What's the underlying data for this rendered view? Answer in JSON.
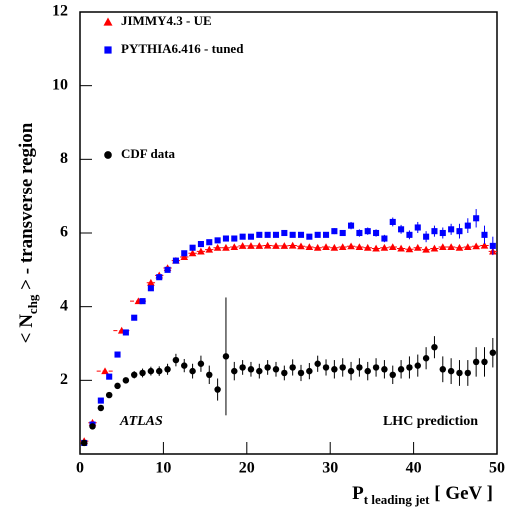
{
  "chart_data": {
    "type": "scatter",
    "y_label": {
      "prefix": "< N",
      "sub": "chg",
      "suffix": " > - transverse region"
    },
    "x_label": {
      "main": "P",
      "sub": "t leading jet",
      "suffix": " [ GeV ]"
    },
    "annotations": [
      "ATLAS",
      "LHC prediction"
    ],
    "xlim": [
      0,
      50
    ],
    "xticks": [
      0,
      10,
      20,
      30,
      40,
      50
    ],
    "ylim": [
      0,
      12
    ],
    "yticks": [
      2,
      4,
      6,
      8,
      10,
      12
    ],
    "series": [
      {
        "name": "JIMMY4.3 - UE",
        "color": "#ff0000",
        "marker": "triangle",
        "x": [
          0.5,
          1.5,
          3,
          5,
          7,
          8.5,
          9.5,
          10.5,
          11.5,
          12.5,
          13.5,
          14.5,
          15.5,
          16.5,
          17.5,
          18.5,
          19.5,
          20.5,
          21.5,
          22.5,
          23.5,
          24.5,
          25.5,
          26.5,
          27.5,
          28.5,
          29.5,
          30.5,
          31.5,
          32.5,
          33.5,
          34.5,
          35.5,
          36.5,
          37.5,
          38.5,
          39.5,
          40.5,
          41.5,
          42.5,
          43.5,
          44.5,
          45.5,
          46.5,
          47.5,
          48.5,
          49.5
        ],
        "xerr": [
          0.5,
          0.5,
          1,
          1,
          1,
          0.5,
          0.5,
          0.5,
          0.5,
          0.5,
          0.5,
          0.5,
          0.5,
          0.5,
          0.5,
          0.5,
          0.5,
          0.5,
          0.5,
          0.5,
          0.5,
          0.5,
          0.5,
          0.5,
          0.5,
          0.5,
          0.5,
          0.5,
          0.5,
          0.5,
          0.5,
          0.5,
          0.5,
          0.5,
          0.5,
          0.5,
          0.5,
          0.5,
          0.5,
          0.5,
          0.5,
          0.5,
          0.5,
          0.5,
          0.5,
          0.5,
          0.5
        ],
        "values": [
          0.35,
          0.85,
          2.25,
          3.35,
          4.15,
          4.65,
          4.85,
          5.05,
          5.25,
          5.35,
          5.45,
          5.5,
          5.55,
          5.6,
          5.6,
          5.62,
          5.65,
          5.65,
          5.65,
          5.66,
          5.65,
          5.65,
          5.66,
          5.64,
          5.62,
          5.6,
          5.62,
          5.6,
          5.62,
          5.64,
          5.62,
          5.6,
          5.58,
          5.6,
          5.62,
          5.58,
          5.56,
          5.6,
          5.55,
          5.58,
          5.62,
          5.62,
          5.6,
          5.62,
          5.64,
          5.66,
          5.5
        ]
      },
      {
        "name": "PYTHIA6.416 - tuned",
        "color": "#0000ff",
        "marker": "square",
        "x": [
          0.5,
          1.5,
          2.5,
          3.5,
          4.5,
          5.5,
          6.5,
          7.5,
          8.5,
          9.5,
          10.5,
          11.5,
          12.5,
          13.5,
          14.5,
          15.5,
          16.5,
          17.5,
          18.5,
          19.5,
          20.5,
          21.5,
          22.5,
          23.5,
          24.5,
          25.5,
          26.5,
          27.5,
          28.5,
          29.5,
          30.5,
          31.5,
          32.5,
          33.5,
          34.5,
          35.5,
          36.5,
          37.5,
          38.5,
          39.5,
          40.5,
          41.5,
          42.5,
          43.5,
          44.5,
          45.5,
          46.5,
          47.5,
          48.5,
          49.5
        ],
        "values": [
          0.3,
          0.8,
          1.45,
          2.1,
          2.7,
          3.3,
          3.7,
          4.15,
          4.5,
          4.8,
          5.0,
          5.25,
          5.45,
          5.6,
          5.7,
          5.75,
          5.8,
          5.85,
          5.85,
          5.9,
          5.9,
          5.95,
          5.95,
          5.95,
          6.0,
          5.95,
          5.95,
          5.9,
          5.95,
          5.95,
          6.05,
          6.0,
          6.2,
          6.0,
          6.05,
          6.0,
          5.85,
          6.3,
          6.1,
          5.95,
          6.15,
          5.9,
          6.05,
          6.0,
          6.1,
          6.05,
          6.2,
          6.4,
          5.95,
          5.65
        ],
        "errors": [
          0.02,
          0.02,
          0.02,
          0.02,
          0.02,
          0.02,
          0.02,
          0.02,
          0.02,
          0.02,
          0.02,
          0.02,
          0.02,
          0.02,
          0.02,
          0.02,
          0.02,
          0.02,
          0.02,
          0.02,
          0.03,
          0.03,
          0.03,
          0.03,
          0.03,
          0.03,
          0.03,
          0.03,
          0.03,
          0.03,
          0.08,
          0.08,
          0.1,
          0.1,
          0.1,
          0.1,
          0.1,
          0.12,
          0.12,
          0.12,
          0.15,
          0.15,
          0.15,
          0.15,
          0.15,
          0.2,
          0.2,
          0.25,
          0.25,
          0.25
        ]
      },
      {
        "name": "CDF data",
        "color": "#000000",
        "marker": "circle",
        "x": [
          0.5,
          1.5,
          2.5,
          3.5,
          4.5,
          5.5,
          6.5,
          7.5,
          8.5,
          9.5,
          10.5,
          11.5,
          12.5,
          13.5,
          14.5,
          15.5,
          16.5,
          17.5,
          18.5,
          19.5,
          20.5,
          21.5,
          22.5,
          23.5,
          24.5,
          25.5,
          26.5,
          27.5,
          28.5,
          29.5,
          30.5,
          31.5,
          32.5,
          33.5,
          34.5,
          35.5,
          36.5,
          37.5,
          38.5,
          39.5,
          40.5,
          41.5,
          42.5,
          43.5,
          44.5,
          45.5,
          46.5,
          47.5,
          48.5,
          49.5
        ],
        "values": [
          0.3,
          0.75,
          1.25,
          1.6,
          1.85,
          2.0,
          2.15,
          2.2,
          2.25,
          2.25,
          2.3,
          2.55,
          2.4,
          2.25,
          2.45,
          2.15,
          1.75,
          2.65,
          2.25,
          2.35,
          2.3,
          2.25,
          2.35,
          2.3,
          2.2,
          2.35,
          2.2,
          2.25,
          2.45,
          2.35,
          2.3,
          2.35,
          2.25,
          2.35,
          2.25,
          2.35,
          2.3,
          2.15,
          2.3,
          2.35,
          2.4,
          2.6,
          2.9,
          2.3,
          2.25,
          2.2,
          2.2,
          2.5,
          2.5,
          2.75
        ],
        "errors": [
          0.03,
          0.04,
          0.05,
          0.06,
          0.07,
          0.08,
          0.1,
          0.12,
          0.12,
          0.13,
          0.15,
          0.17,
          0.18,
          0.2,
          0.22,
          0.25,
          0.3,
          1.6,
          0.25,
          0.2,
          0.2,
          0.2,
          0.2,
          0.2,
          0.2,
          0.22,
          0.22,
          0.22,
          0.22,
          0.22,
          0.25,
          0.25,
          0.25,
          0.25,
          0.25,
          0.25,
          0.25,
          0.25,
          0.25,
          0.3,
          0.3,
          0.3,
          0.3,
          0.35,
          0.35,
          0.35,
          0.35,
          0.4,
          0.4,
          0.4
        ]
      }
    ]
  }
}
